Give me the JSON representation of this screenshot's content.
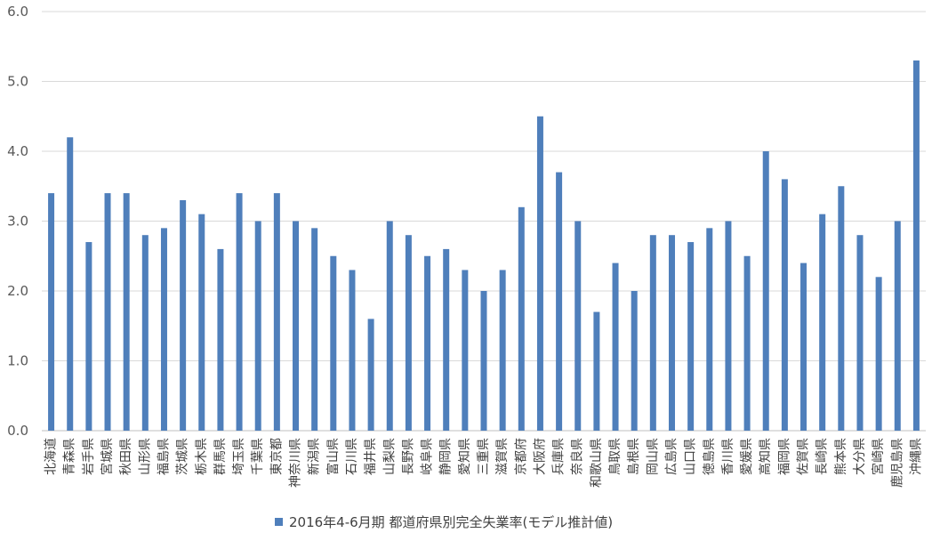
{
  "chart_data": {
    "type": "bar",
    "title": "",
    "xlabel": "",
    "ylabel": "",
    "ylim": [
      0,
      6
    ],
    "yticks": [
      "0.0",
      "1.0",
      "2.0",
      "3.0",
      "4.0",
      "5.0",
      "6.0"
    ],
    "grid": true,
    "legend_position": "bottom",
    "bar_color": "#4f7fbb",
    "categories": [
      "北海道",
      "青森県",
      "岩手県",
      "宮城県",
      "秋田県",
      "山形県",
      "福島県",
      "茨城県",
      "栃木県",
      "群馬県",
      "埼玉県",
      "千葉県",
      "東京都",
      "神奈川県",
      "新潟県",
      "富山県",
      "石川県",
      "福井県",
      "山梨県",
      "長野県",
      "岐阜県",
      "静岡県",
      "愛知県",
      "三重県",
      "滋賀県",
      "京都府",
      "大阪府",
      "兵庫県",
      "奈良県",
      "和歌山県",
      "鳥取県",
      "島根県",
      "岡山県",
      "広島県",
      "山口県",
      "徳島県",
      "香川県",
      "愛媛県",
      "高知県",
      "福岡県",
      "佐賀県",
      "長崎県",
      "熊本県",
      "大分県",
      "宮崎県",
      "鹿児島県",
      "沖縄県"
    ],
    "series": [
      {
        "name": "2016年4-6月期 都道府県別完全失業率(モデル推計値)",
        "values": [
          3.4,
          4.2,
          2.7,
          3.4,
          3.4,
          2.8,
          2.9,
          3.3,
          3.1,
          2.6,
          3.4,
          3.0,
          3.4,
          3.0,
          2.9,
          2.5,
          2.3,
          1.6,
          3.0,
          2.8,
          2.5,
          2.6,
          2.3,
          2.0,
          2.3,
          3.2,
          4.5,
          3.7,
          3.0,
          1.7,
          2.4,
          2.0,
          2.8,
          2.8,
          2.7,
          2.9,
          3.0,
          2.5,
          4.0,
          3.6,
          2.4,
          3.1,
          3.5,
          2.8,
          2.2,
          3.0,
          5.3
        ]
      }
    ]
  }
}
